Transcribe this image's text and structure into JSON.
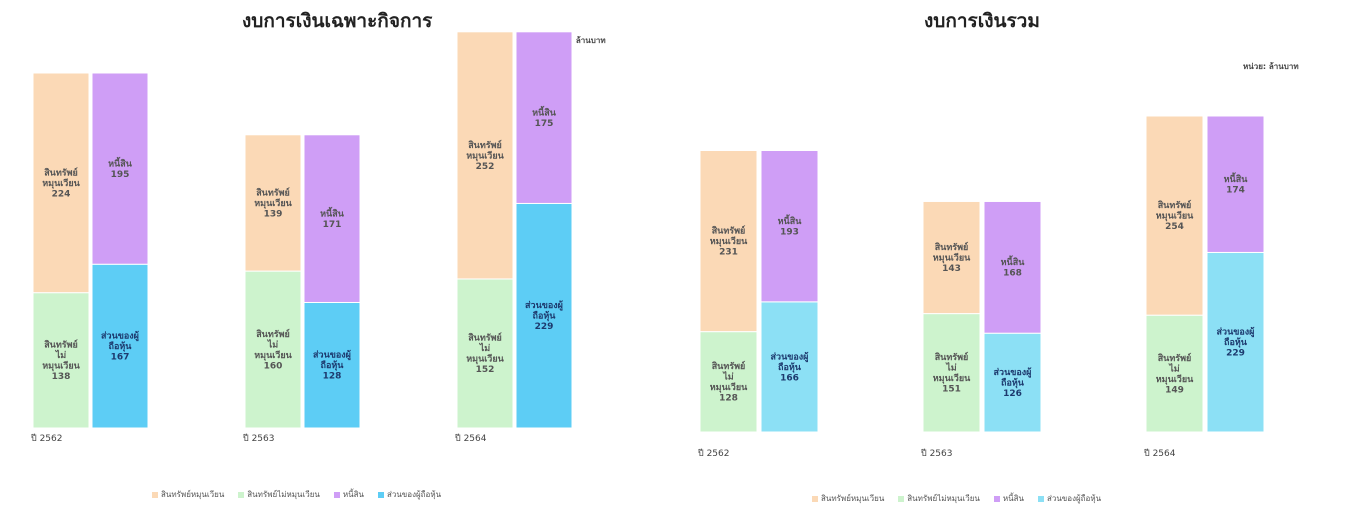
{
  "colors": {
    "current_assets": "#fbd9b6",
    "noncurrent_assets": "#cdf3cd",
    "liabilities": "#cf9ef6",
    "equity": "#5dcdf5",
    "equity_light": "#8ce0f5"
  },
  "chart_data": [
    {
      "type": "bar",
      "stacked": true,
      "title": "งบการเงินเฉพาะกิจการ",
      "unit_label": "หน่วย: ล้านบาท",
      "categories": [
        "ปี 2562",
        "ปี 2563",
        "ปี 2564"
      ],
      "ylim": [
        0,
        400
      ],
      "stacks": [
        {
          "name": "assets",
          "segments": [
            {
              "series": "สินทรัพย์ไม่หมุนเวียน",
              "label_lines": [
                "สินทรัพย์",
                "ไม่",
                "หมุนเวียน"
              ],
              "values": [
                138,
                160,
                152
              ]
            },
            {
              "series": "สินทรัพย์หมุนเวียน",
              "label_lines": [
                "สินทรัพย์",
                "หมุนเวียน"
              ],
              "values": [
                224,
                139,
                252
              ]
            }
          ]
        },
        {
          "name": "liabilities_equity",
          "segments": [
            {
              "series": "ส่วนของผู้ถือหุ้น",
              "label_lines": [
                "ส่วนของผู้",
                "ถือหุ้น"
              ],
              "values": [
                167,
                128,
                229
              ]
            },
            {
              "series": "หนี้สิน",
              "label_lines": [
                "หนี้สิน"
              ],
              "values": [
                195,
                171,
                175
              ]
            }
          ]
        }
      ],
      "legend": [
        "สินทรัพย์หมุนเวียน",
        "สินทรัพย์ไม่หมุนเวียน",
        "หนี้สิน",
        "ส่วนของผู้ถือหุ้น"
      ],
      "legend_position": "bottom"
    },
    {
      "type": "bar",
      "stacked": true,
      "title": "งบการเงินรวม",
      "unit_label": "หน่วย: ล้านบาท",
      "categories": [
        "ปี 2562",
        "ปี 2563",
        "ปี 2564"
      ],
      "ylim": [
        0,
        400
      ],
      "stacks": [
        {
          "name": "assets",
          "segments": [
            {
              "series": "สินทรัพย์ไม่หมุนเวียน",
              "label_lines": [
                "สินทรัพย์",
                "ไม่",
                "หมุนเวียน"
              ],
              "values": [
                128,
                151,
                149
              ]
            },
            {
              "series": "สินทรัพย์หมุนเวียน",
              "label_lines": [
                "สินทรัพย์",
                "หมุนเวียน"
              ],
              "values": [
                231,
                143,
                254
              ]
            }
          ]
        },
        {
          "name": "liabilities_equity",
          "segments": [
            {
              "series": "ส่วนของผู้ถือหุ้น",
              "label_lines": [
                "ส่วนของผู้",
                "ถือหุ้น"
              ],
              "values": [
                166,
                126,
                229
              ]
            },
            {
              "series": "หนี้สิน",
              "label_lines": [
                "หนี้สิน"
              ],
              "values": [
                193,
                168,
                174
              ]
            }
          ]
        }
      ],
      "legend": [
        "สินทรัพย์หมุนเวียน",
        "สินทรัพย์ไม่หมุนเวียน",
        "หนี้สิน",
        "ส่วนของผู้ถือหุ้น"
      ],
      "legend_position": "bottom"
    }
  ]
}
